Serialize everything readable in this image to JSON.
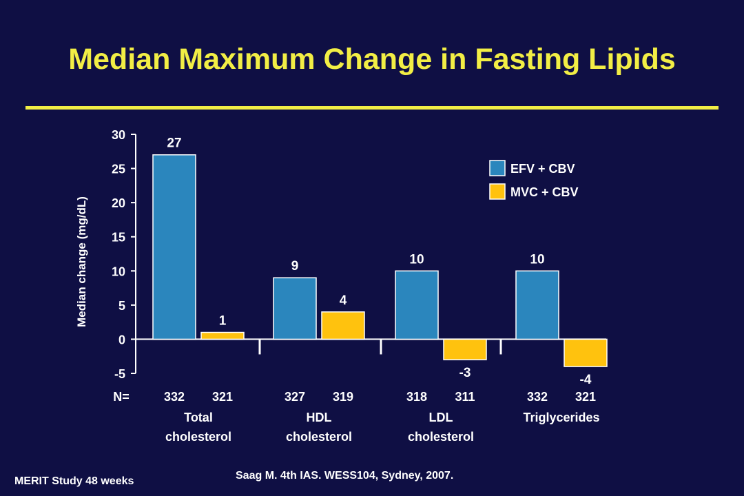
{
  "title": "Median Maximum Change in Fasting Lipids",
  "colors": {
    "background": "#0f0f44",
    "title": "#f2ee45",
    "efv": "#2b86bd",
    "mvc": "#ffc20e",
    "text": "#ffffff"
  },
  "chart_data": {
    "type": "bar",
    "categories": [
      "Total\ncholesterol",
      "HDL\ncholesterol",
      "LDL\ncholesterol",
      "Triglycerides"
    ],
    "series": [
      {
        "name": "EFV + CBV",
        "values": [
          27,
          9,
          10,
          10
        ],
        "n": [
          "332",
          "327",
          "318",
          "332"
        ]
      },
      {
        "name": "MVC + CBV",
        "values": [
          1,
          4,
          -3,
          -4
        ],
        "n": [
          "321",
          "319",
          "311",
          "321"
        ]
      }
    ],
    "data_labels": [
      [
        "27",
        "9",
        "10",
        "10"
      ],
      [
        "1",
        "4",
        "-3",
        "-4"
      ]
    ],
    "ylabel": "Median change (mg/dL)",
    "ylim": [
      -5,
      30
    ],
    "yticks": [
      -5,
      0,
      5,
      10,
      15,
      20,
      25,
      30
    ],
    "n_label": "N=",
    "legend_position": "top-right",
    "grid": false
  },
  "footer": {
    "study": "MERIT Study 48 weeks",
    "citation": "Saag M. 4th IAS. WESS104, Sydney, 2007."
  }
}
